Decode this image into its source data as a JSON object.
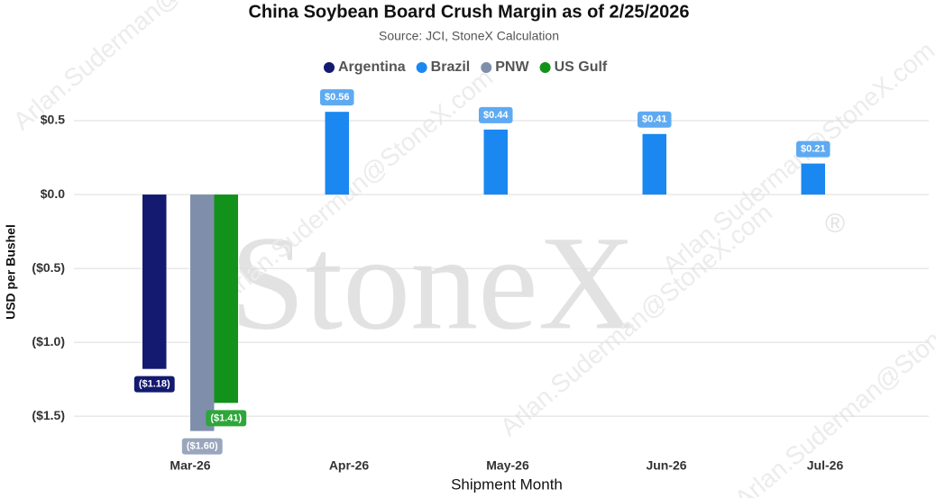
{
  "chart_data": {
    "type": "bar",
    "title": "China Soybean Board Crush Margin as of 2/25/2026",
    "subtitle": "Source: JCI, StoneX Calculation",
    "x_label": "Shipment Month",
    "y_label": "USD per Bushel",
    "watermark": {
      "logo": "StoneX",
      "mark": "®",
      "text": "Arlan.Suderman@StoneX.com"
    },
    "categories": [
      "Mar-26",
      "Apr-26",
      "May-26",
      "Jun-26",
      "Jul-26"
    ],
    "series": [
      {
        "name": "Argentina",
        "color": "#131a70",
        "label_color": "#131a70",
        "values": [
          -1.18,
          null,
          null,
          null,
          null
        ],
        "value_labels": [
          "($1.18)",
          null,
          null,
          null,
          null
        ]
      },
      {
        "name": "Brazil",
        "color": "#1a88f0",
        "label_color": "#5eaaf2",
        "values": [
          null,
          0.56,
          0.44,
          0.41,
          0.21
        ],
        "value_labels": [
          null,
          "$0.56",
          "$0.44",
          "$0.41",
          "$0.21"
        ]
      },
      {
        "name": "PNW",
        "color": "#7f8fab",
        "label_color": "#9aa6bd",
        "values": [
          -1.6,
          null,
          null,
          null,
          null
        ],
        "value_labels": [
          "($1.60)",
          null,
          null,
          null,
          null
        ]
      },
      {
        "name": "US Gulf",
        "color": "#12921a",
        "label_color": "#2ea63a",
        "values": [
          -1.41,
          null,
          null,
          null,
          null
        ],
        "value_labels": [
          "($1.41)",
          null,
          null,
          null,
          null
        ]
      }
    ],
    "ylim": [
      -1.7,
      0.75
    ],
    "yticks": [
      {
        "value": 0.5,
        "label": "$0.5"
      },
      {
        "value": 0,
        "label": "$0.0"
      },
      {
        "value": -0.5,
        "label": "($0.5)"
      },
      {
        "value": -1,
        "label": "($1.0)"
      },
      {
        "value": -1.5,
        "label": "($1.5)"
      }
    ],
    "grid": true,
    "legend": "top"
  }
}
